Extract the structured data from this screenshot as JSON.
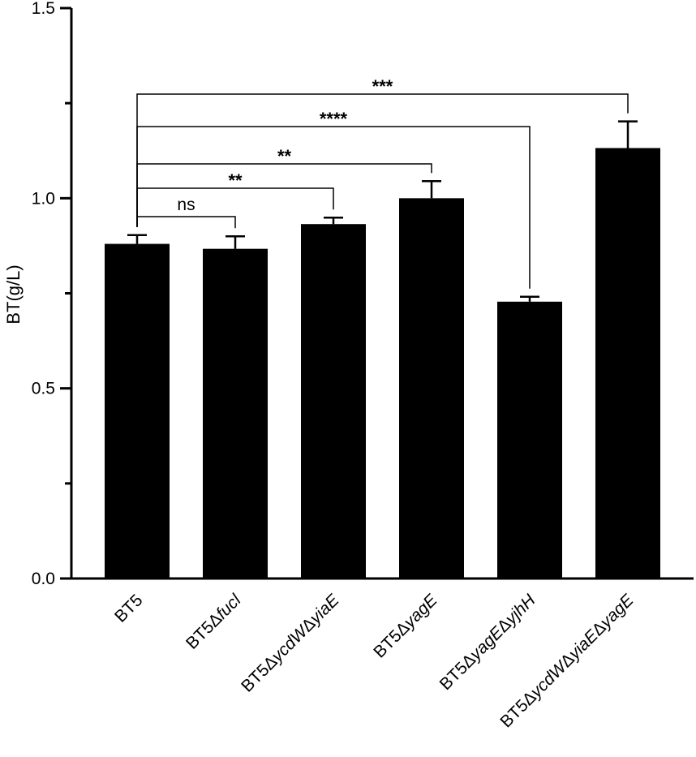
{
  "chart_data": {
    "type": "bar",
    "ylabel": "BT(g/L)",
    "xlabel": "",
    "ylim": [
      0,
      1.5
    ],
    "yticks_labeled": [
      0.0,
      0.5,
      1.0,
      1.5
    ],
    "ytick_labels": [
      "0.0",
      "0.5",
      "1.0",
      "1.5"
    ],
    "yticks_minor": [
      0.25,
      0.75,
      1.25
    ],
    "grid": false,
    "bar_color": "#000000",
    "categories": [
      {
        "prefix": "BT5",
        "parts": []
      },
      {
        "prefix": "BT5",
        "parts": [
          {
            "sym": "Δ",
            "gene": "fucl"
          }
        ]
      },
      {
        "prefix": "BT5",
        "parts": [
          {
            "sym": "Δ",
            "gene": "ycdW"
          },
          {
            "sym": "Δ",
            "gene": "yiaE"
          }
        ]
      },
      {
        "prefix": "BT5",
        "parts": [
          {
            "sym": "Δ",
            "gene": "yagE"
          }
        ]
      },
      {
        "prefix": "BT5",
        "parts": [
          {
            "sym": "Δ",
            "gene": "yagE"
          },
          {
            "sym": "Δ",
            "gene": "yjhH"
          }
        ]
      },
      {
        "prefix": "BT5",
        "parts": [
          {
            "sym": "Δ",
            "gene": "ycdW"
          },
          {
            "sym": "Δ",
            "gene": "yiaE"
          },
          {
            "sym": "Δ",
            "gene": "yagE"
          }
        ]
      }
    ],
    "values": [
      0.88,
      0.867,
      0.932,
      1.0,
      0.728,
      1.132
    ],
    "errors": [
      0.023,
      0.033,
      0.017,
      0.045,
      0.013,
      0.07
    ],
    "significance": [
      {
        "from": 0,
        "to": 1,
        "label": "ns"
      },
      {
        "from": 0,
        "to": 2,
        "label": "**"
      },
      {
        "from": 0,
        "to": 3,
        "label": "**"
      },
      {
        "from": 0,
        "to": 4,
        "label": "****"
      },
      {
        "from": 0,
        "to": 5,
        "label": "***"
      }
    ]
  }
}
